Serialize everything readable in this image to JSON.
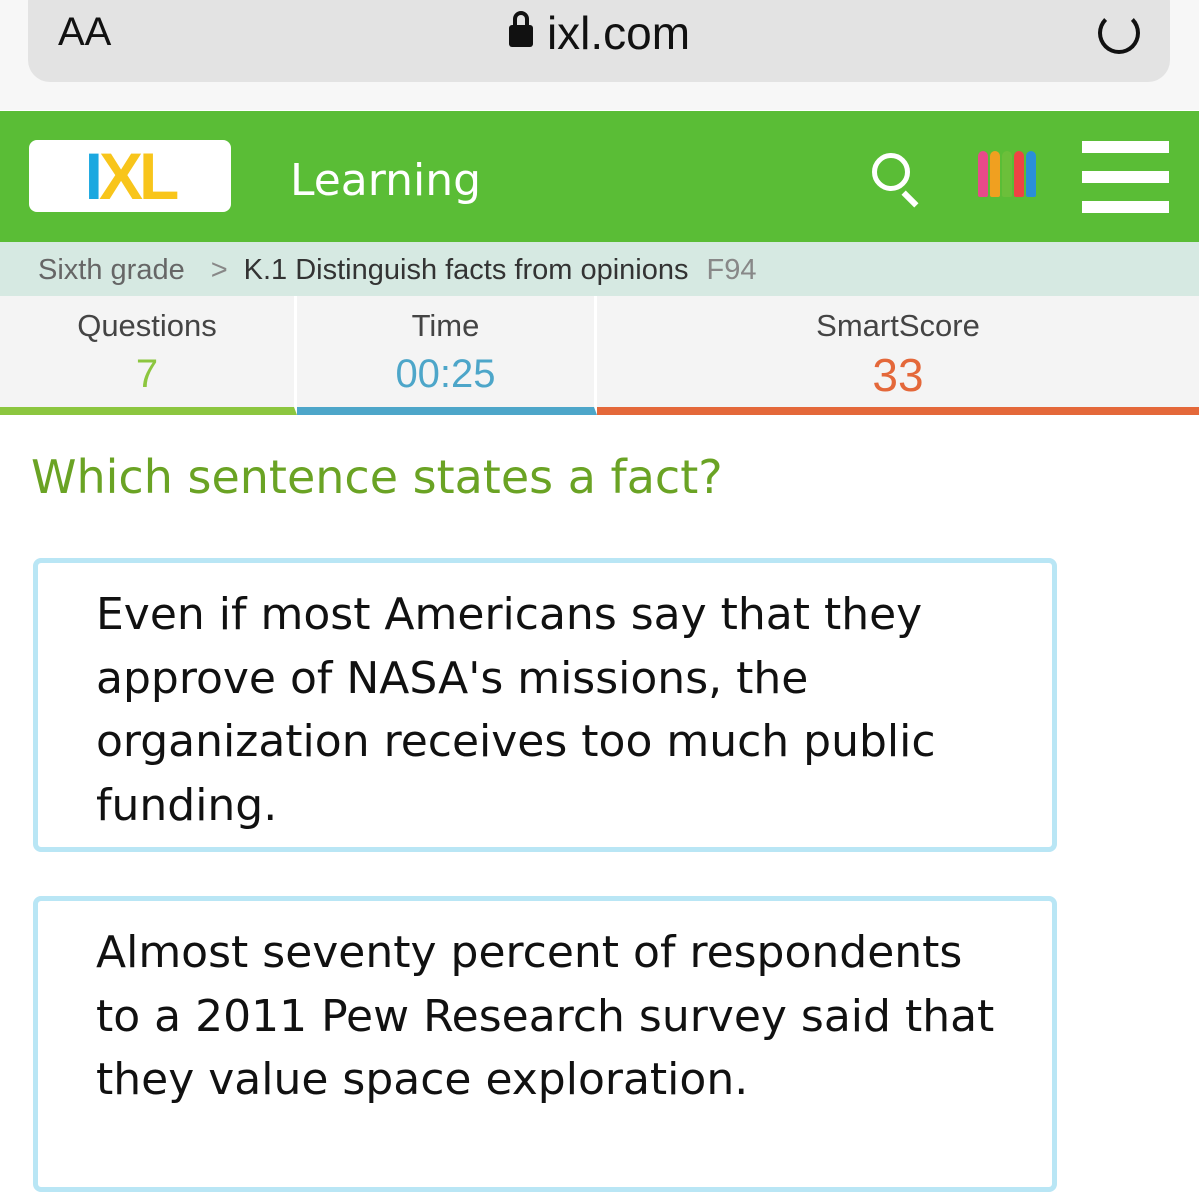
{
  "browser": {
    "text_size_label": "AA",
    "url": "ixl.com"
  },
  "header": {
    "logo": "IXL",
    "title": "Learning",
    "icons": [
      "search-icon",
      "crayons-icon",
      "menu-icon"
    ],
    "color": "#5abd36"
  },
  "breadcrumb": {
    "grade": "Sixth grade",
    "skill": "K.1 Distinguish facts from opinions",
    "code": "F94"
  },
  "stats": [
    {
      "label": "Questions",
      "value": "7",
      "color": "#8cc63f"
    },
    {
      "label": "Time",
      "value": "00:25",
      "color": "#4da6c9"
    },
    {
      "label": "SmartScore",
      "value": "33",
      "color": "#e4683a"
    }
  ],
  "question": "Which sentence states a fact?",
  "choices": [
    "Even if most Americans say that they approve of NASA's missions, the organization receives too much public funding.",
    "Almost seventy percent of respondents to a 2011 Pew Research survey said that they value space exploration."
  ]
}
